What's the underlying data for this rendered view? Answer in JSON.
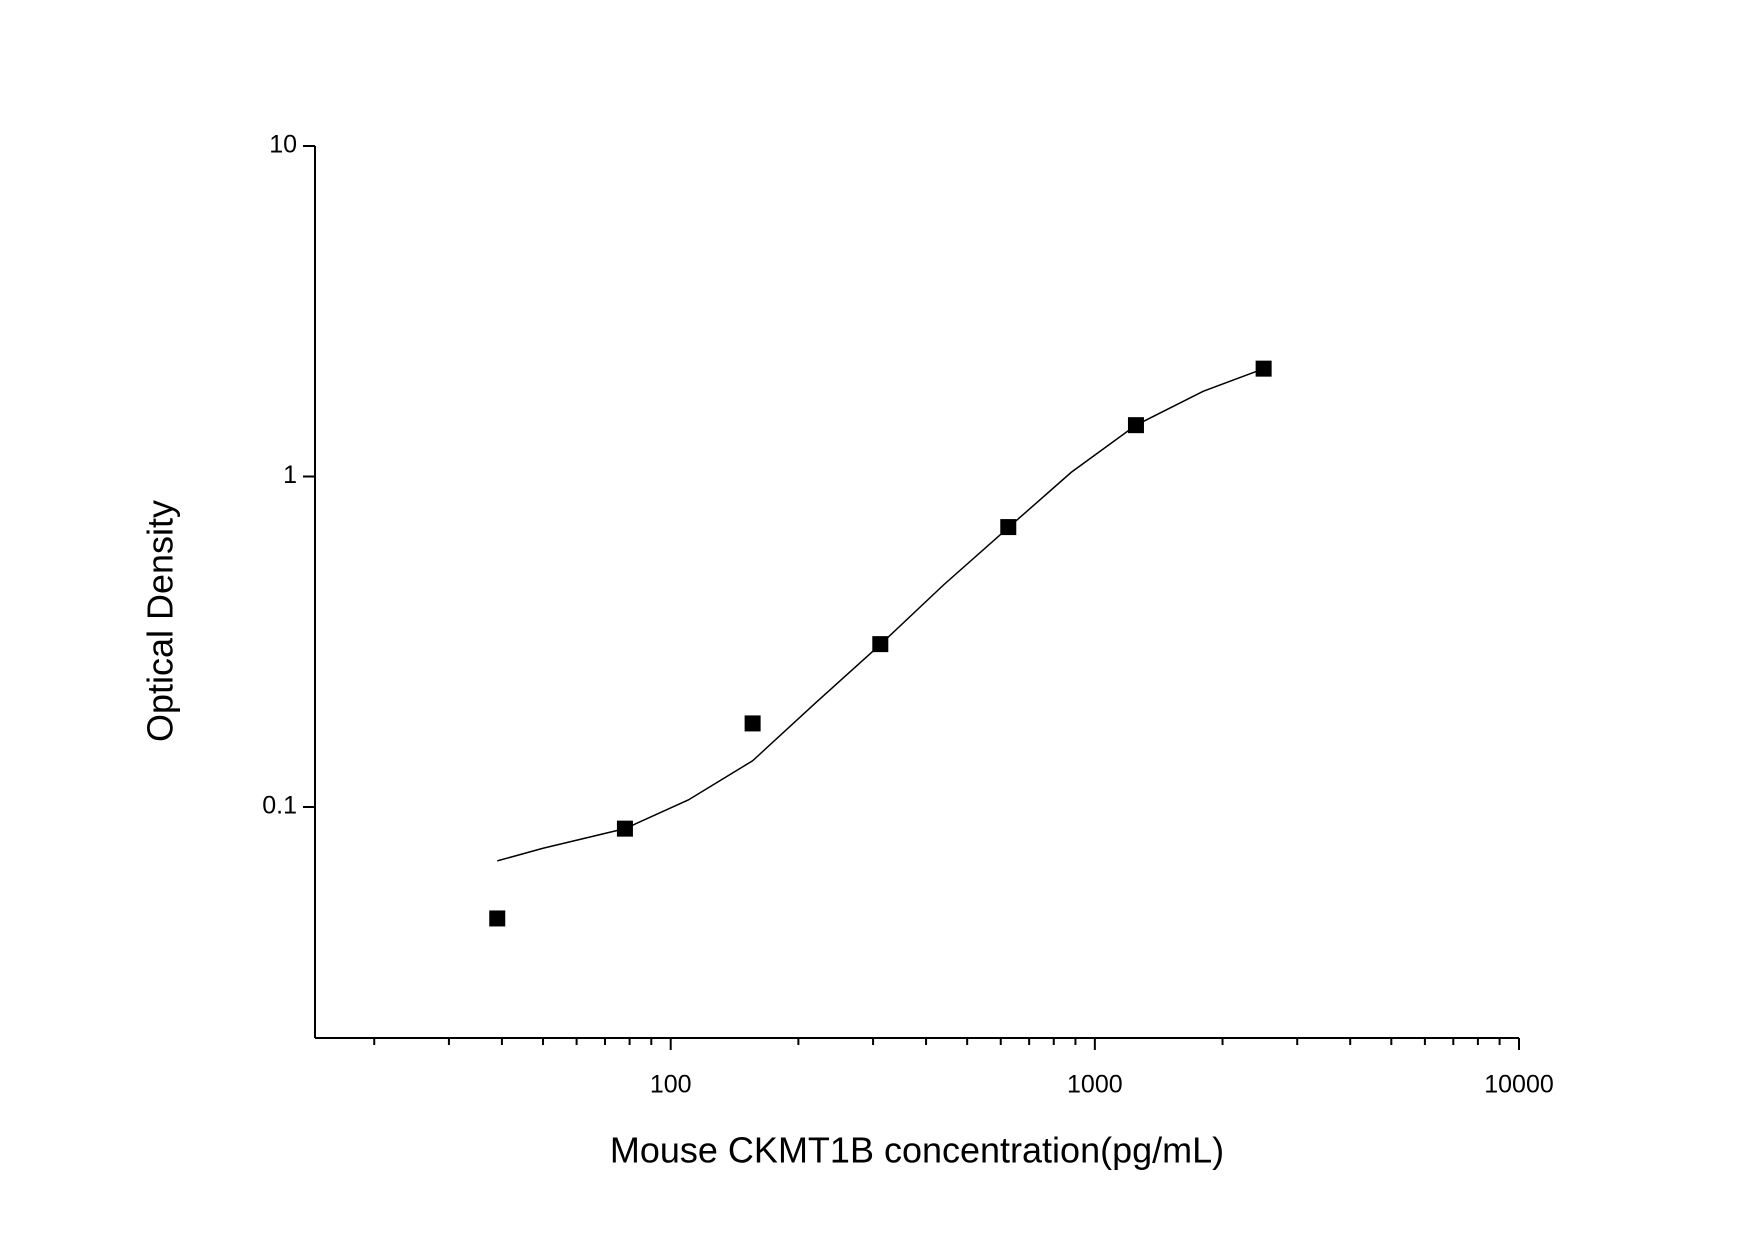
{
  "chart_data": {
    "type": "scatter",
    "x_label": "Mouse CKMT1B concentration(pg/mL)",
    "y_label": "Optical Density",
    "xlog": true,
    "ylog": true,
    "xlim": [
      14.5,
      10000
    ],
    "ylim": [
      0.02,
      10
    ],
    "xticks": [
      100,
      1000,
      10000
    ],
    "xminorticks": [
      20,
      30,
      40,
      50,
      60,
      70,
      80,
      90,
      200,
      300,
      400,
      500,
      600,
      700,
      800,
      900,
      2000,
      3000,
      4000,
      5000,
      6000,
      7000,
      8000,
      9000
    ],
    "yticks": [
      0.1,
      1,
      10
    ],
    "series": [
      {
        "type": "scatter",
        "color": "#000000",
        "x": [
          39,
          78,
          156,
          312,
          625,
          1250,
          2500
        ],
        "values": [
          0.046,
          0.086,
          0.179,
          0.311,
          0.703,
          1.43,
          2.12
        ]
      },
      {
        "type": "line",
        "color": "#000000",
        "x": [
          39,
          50,
          78,
          110,
          156,
          220,
          312,
          440,
          625,
          880,
          1250,
          1800,
          2500
        ],
        "values": [
          0.0687,
          0.075,
          0.086,
          0.105,
          0.138,
          0.207,
          0.31,
          0.47,
          0.7,
          1.03,
          1.43,
          1.81,
          2.12
        ]
      }
    ]
  }
}
